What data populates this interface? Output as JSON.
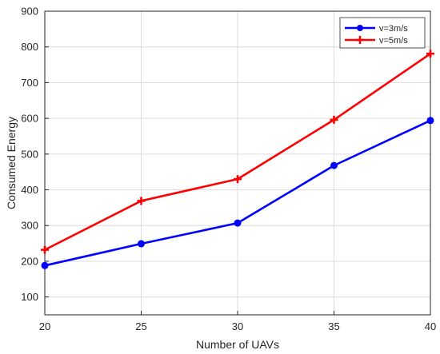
{
  "chart_data": {
    "type": "line",
    "xlabel": "Number of UAVs",
    "ylabel": "Consumed Energy",
    "x": [
      20,
      25,
      30,
      35,
      40
    ],
    "xlim": [
      20,
      40
    ],
    "ylim": [
      50,
      900
    ],
    "xticks": [
      "20",
      "25",
      "30",
      "35",
      "40"
    ],
    "yticks": [
      "100",
      "200",
      "300",
      "400",
      "500",
      "600",
      "700",
      "800",
      "900"
    ],
    "grid": true,
    "legend_position": "top-right",
    "series": [
      {
        "name": "v=3m/s",
        "values": [
          188,
          249,
          307,
          468,
          594
        ],
        "color": "#0000ff",
        "marker": "circle"
      },
      {
        "name": "v=5m/s",
        "values": [
          232,
          369,
          430,
          596,
          781
        ],
        "color": "#ff0000",
        "marker": "plus"
      }
    ]
  }
}
